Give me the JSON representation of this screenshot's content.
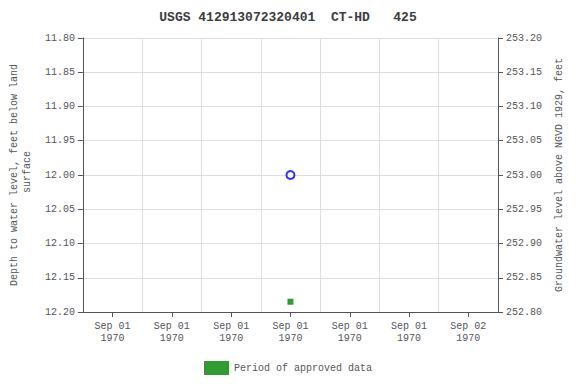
{
  "chart_data": {
    "type": "scatter",
    "title": "USGS 412913072320401  CT-HD   425",
    "ylabel": "Depth to water level, feet below land\n surface",
    "y2label": "Groundwater level above NGVD 1929, feet",
    "categories": [
      "Sep 01\n1970",
      "Sep 01\n1970",
      "Sep 01\n1970",
      "Sep 01\n1970",
      "Sep 01\n1970",
      "Sep 01\n1970",
      "Sep 02\n1970"
    ],
    "series": [
      {
        "values": [
          null,
          null,
          null,
          12.0,
          null,
          null,
          null
        ],
        "color": "#0000ff",
        "marker": "open_circle"
      },
      {
        "name": "Period of approved data",
        "values": [
          null,
          null,
          null,
          12.185,
          null,
          null,
          null
        ],
        "color": "#008000",
        "marker": "square"
      }
    ],
    "ylim": [
      12.2,
      11.8
    ],
    "yticks": [
      {
        "value": 11.8,
        "label": "11.80"
      },
      11.85,
      {
        "value": 11.9,
        "label": "11.90"
      },
      11.95,
      {
        "value": 12.0,
        "label": "12.00"
      },
      12.05,
      {
        "value": 12.1,
        "label": "12.10"
      },
      12.15,
      {
        "value": 12.2,
        "label": "12.20"
      }
    ],
    "y2lim": [
      252.8,
      253.2
    ],
    "y2ticks": [
      {
        "value": 253.2,
        "label": "253.20"
      },
      253.15,
      {
        "value": 253.1,
        "label": "253.10"
      },
      253.05,
      {
        "value": 253.0,
        "label": "253.00"
      },
      252.95,
      {
        "value": 252.9,
        "label": "252.90"
      },
      252.85,
      {
        "value": 252.8,
        "label": "252.80"
      }
    ],
    "grid": true,
    "legend": "bottom"
  }
}
